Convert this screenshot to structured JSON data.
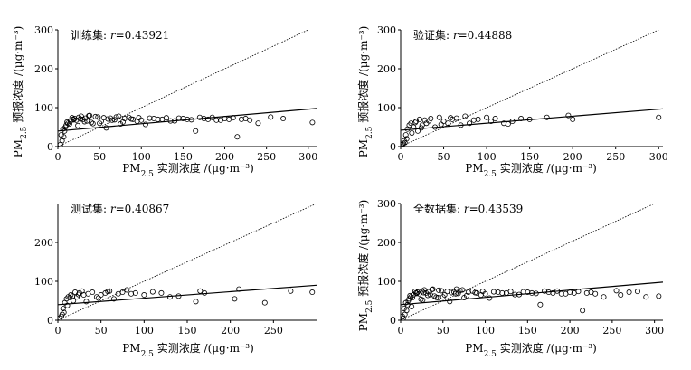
{
  "figure": {
    "axis_label_text": "PM2.5 实测浓度 /(μg·m⁻³)",
    "yaxis_label_text": "PM2.5 预报浓度 /(μg·m⁻³)"
  },
  "chart_data": [
    {
      "type": "scatter",
      "panel": "train",
      "title": "训练集: r=0.43921",
      "title_prefix": "训练集: ",
      "r_symbol": "r",
      "r_value": "=0.43921",
      "xlabel": "PM2.5 实测浓度 /(μg·m⁻³)",
      "ylabel": "PM2.5 预报浓度 /(μg·m⁻³)",
      "xlim": [
        0,
        310
      ],
      "ylim": [
        0,
        300
      ],
      "xticks": [
        0,
        50,
        100,
        150,
        200,
        250,
        300
      ],
      "yticks": [
        0,
        100,
        200,
        300
      ],
      "fit_line": {
        "x": [
          0,
          310
        ],
        "y": [
          40,
          98
        ]
      },
      "identity_line": {
        "x": [
          0,
          300
        ],
        "y": [
          0,
          300
        ]
      },
      "points": {
        "x": [
          3,
          5,
          7,
          8,
          10,
          12,
          15,
          18,
          20,
          22,
          25,
          28,
          30,
          33,
          35,
          38,
          40,
          45,
          50,
          55,
          60,
          65,
          70,
          75,
          80,
          85,
          90,
          95,
          100,
          110,
          120,
          130,
          140,
          150,
          160,
          170,
          180,
          190,
          200,
          210,
          220,
          230,
          240,
          255,
          270,
          305,
          4,
          6,
          9,
          11,
          14,
          17,
          19,
          24,
          27,
          32,
          37,
          42,
          48,
          52,
          58,
          63,
          68,
          73,
          78,
          88,
          97,
          105,
          115,
          125,
          135,
          145,
          155,
          165,
          175,
          185,
          195,
          205,
          215,
          225
        ],
        "y": [
          5,
          15,
          25,
          40,
          55,
          60,
          65,
          70,
          72,
          68,
          75,
          78,
          70,
          73,
          66,
          80,
          62,
          77,
          60,
          74,
          71,
          68,
          76,
          58,
          72,
          75,
          70,
          65,
          68,
          73,
          70,
          74,
          66,
          72,
          69,
          75,
          70,
          68,
          72,
          74,
          70,
          68,
          60,
          76,
          72,
          62,
          30,
          45,
          50,
          63,
          58,
          74,
          69,
          54,
          71,
          64,
          79,
          59,
          76,
          65,
          48,
          73,
          69,
          78,
          63,
          71,
          74,
          57,
          72,
          70,
          66,
          73,
          70,
          40,
          72,
          75,
          68,
          70,
          25,
          72
        ]
      }
    },
    {
      "type": "scatter",
      "panel": "validation",
      "title": "验证集: r=0.44888",
      "title_prefix": "验证集: ",
      "r_symbol": "r",
      "r_value": "=0.44888",
      "xlabel": "PM2.5 实测浓度 /(μg·m⁻³)",
      "ylabel": "PM2.5 预报浓度 /(μg·m⁻³)",
      "xlim": [
        0,
        305
      ],
      "ylim": [
        0,
        300
      ],
      "xticks": [
        0,
        50,
        100,
        150,
        200,
        250,
        300
      ],
      "yticks": [
        0,
        100,
        200,
        300
      ],
      "fit_line": {
        "x": [
          0,
          305
        ],
        "y": [
          42,
          97
        ]
      },
      "identity_line": {
        "x": [
          0,
          300
        ],
        "y": [
          0,
          300
        ]
      },
      "points": {
        "x": [
          2,
          3,
          4,
          5,
          6,
          8,
          10,
          12,
          15,
          18,
          20,
          22,
          25,
          28,
          30,
          35,
          40,
          45,
          50,
          55,
          60,
          65,
          70,
          75,
          80,
          90,
          100,
          110,
          120,
          130,
          140,
          150,
          170,
          195,
          200,
          300,
          7,
          13,
          17,
          24,
          33,
          47,
          58,
          85,
          105,
          125
        ],
        "y": [
          5,
          8,
          15,
          10,
          30,
          45,
          55,
          60,
          50,
          65,
          40,
          70,
          55,
          68,
          60,
          72,
          50,
          75,
          65,
          60,
          70,
          73,
          55,
          78,
          60,
          70,
          75,
          72,
          60,
          65,
          72,
          70,
          75,
          80,
          70,
          75,
          20,
          35,
          62,
          48,
          66,
          57,
          74,
          68,
          65,
          58
        ]
      }
    },
    {
      "type": "scatter",
      "panel": "test",
      "title": "测试集: r=0.40867",
      "title_prefix": "测试集: ",
      "r_symbol": "r",
      "r_value": "=0.40867",
      "xlabel": "PM2.5 实测浓度 /(μg·m⁻³)",
      "ylabel": "",
      "xlim": [
        0,
        300
      ],
      "ylim": [
        0,
        300
      ],
      "xticks": [
        0,
        50,
        100,
        150,
        200,
        250
      ],
      "yticks": [
        0,
        100,
        200
      ],
      "fit_line": {
        "x": [
          0,
          300
        ],
        "y": [
          40,
          90
        ]
      },
      "identity_line": {
        "x": [
          0,
          300
        ],
        "y": [
          0,
          300
        ]
      },
      "points": {
        "x": [
          2,
          4,
          5,
          6,
          8,
          10,
          12,
          15,
          18,
          20,
          22,
          25,
          28,
          30,
          35,
          40,
          45,
          50,
          55,
          60,
          65,
          70,
          75,
          80,
          90,
          100,
          110,
          120,
          130,
          140,
          160,
          165,
          170,
          205,
          210,
          240,
          270,
          295,
          7,
          11,
          14,
          17,
          24,
          33,
          47,
          58,
          85
        ],
        "y": [
          5,
          10,
          15,
          30,
          45,
          55,
          60,
          65,
          50,
          72,
          60,
          70,
          75,
          65,
          68,
          72,
          60,
          65,
          70,
          75,
          55,
          68,
          72,
          78,
          70,
          65,
          73,
          70,
          60,
          62,
          48,
          75,
          70,
          55,
          80,
          45,
          75,
          72,
          20,
          38,
          58,
          62,
          66,
          48,
          57,
          74,
          68
        ]
      }
    },
    {
      "type": "scatter",
      "panel": "all",
      "title": "全数据集: r=0.43539",
      "title_prefix": "全数据集: ",
      "r_symbol": "r",
      "r_value": "=0.43539",
      "xlabel": "PM2.5 实测浓度 /(μg·m⁻³)",
      "ylabel": "PM2.5 预报浓度 /(μg·m⁻³)",
      "xlim": [
        0,
        310
      ],
      "ylim": [
        0,
        300
      ],
      "xticks": [
        0,
        50,
        100,
        150,
        200,
        250,
        300
      ],
      "yticks": [
        0,
        100,
        200,
        300
      ],
      "fit_line": {
        "x": [
          0,
          310
        ],
        "y": [
          40,
          98
        ]
      },
      "identity_line": {
        "x": [
          0,
          300
        ],
        "y": [
          0,
          300
        ]
      },
      "points": {
        "x": [
          3,
          5,
          7,
          8,
          10,
          12,
          15,
          18,
          20,
          22,
          25,
          28,
          30,
          33,
          35,
          38,
          40,
          45,
          50,
          55,
          60,
          65,
          70,
          75,
          80,
          85,
          90,
          95,
          100,
          110,
          120,
          130,
          140,
          150,
          160,
          170,
          180,
          190,
          200,
          210,
          220,
          230,
          240,
          255,
          270,
          305,
          4,
          6,
          9,
          11,
          14,
          17,
          19,
          24,
          27,
          32,
          37,
          42,
          48,
          52,
          58,
          63,
          68,
          73,
          78,
          88,
          97,
          105,
          115,
          125,
          135,
          145,
          155,
          165,
          175,
          185,
          195,
          205,
          215,
          225,
          260,
          280,
          290,
          2,
          13,
          26,
          44,
          66
        ],
        "y": [
          5,
          15,
          25,
          40,
          55,
          60,
          65,
          70,
          72,
          68,
          75,
          78,
          70,
          73,
          66,
          80,
          62,
          77,
          60,
          74,
          71,
          68,
          76,
          58,
          72,
          75,
          70,
          65,
          68,
          73,
          70,
          74,
          66,
          72,
          69,
          75,
          70,
          68,
          72,
          74,
          70,
          68,
          60,
          76,
          72,
          62,
          30,
          45,
          50,
          63,
          58,
          74,
          69,
          54,
          71,
          64,
          79,
          59,
          76,
          65,
          48,
          73,
          69,
          78,
          63,
          71,
          74,
          57,
          72,
          70,
          66,
          73,
          70,
          40,
          72,
          75,
          68,
          70,
          25,
          72,
          65,
          74,
          60,
          10,
          35,
          52,
          58,
          80
        ]
      }
    }
  ]
}
